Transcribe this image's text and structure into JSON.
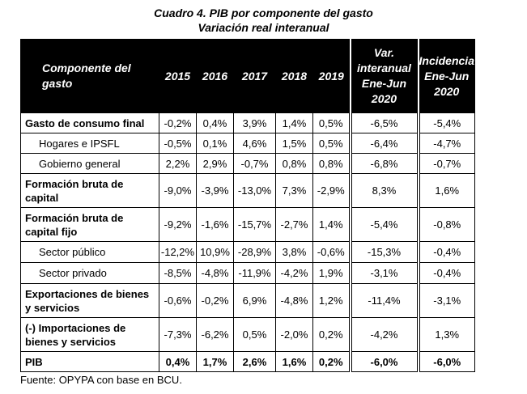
{
  "title": "Cuadro 4. PIB por componente del gasto",
  "subtitle": "Variación real interanual",
  "header": {
    "component": "Componente del gasto",
    "y2015": "2015",
    "y2016": "2016",
    "y2017": "2017",
    "y2018": "2018",
    "y2019": "2019",
    "var": "Var. interanual Ene-Jun 2020",
    "inc": "Incidencia Ene-Jun 2020"
  },
  "rows": [
    {
      "label": "Gasto de consumo final",
      "v2015": "-0,2%",
      "v2016": "0,4%",
      "v2017": "3,9%",
      "v2018": "1,4%",
      "v2019": "0,5%",
      "var": "-6,5%",
      "inc": "-5,4%"
    },
    {
      "label": "Hogares e IPSFL",
      "v2015": "-0,5%",
      "v2016": "0,1%",
      "v2017": "4,6%",
      "v2018": "1,5%",
      "v2019": "0,5%",
      "var": "-6,4%",
      "inc": "-4,7%"
    },
    {
      "label": "Gobierno general",
      "v2015": "2,2%",
      "v2016": "2,9%",
      "v2017": "-0,7%",
      "v2018": "0,8%",
      "v2019": "0,8%",
      "var": "-6,8%",
      "inc": "-0,7%"
    },
    {
      "label": "Formación bruta de capital",
      "v2015": "-9,0%",
      "v2016": "-3,9%",
      "v2017": "-13,0%",
      "v2018": "7,3%",
      "v2019": "-2,9%",
      "var": "8,3%",
      "inc": "1,6%"
    },
    {
      "label": "Formación bruta de capital fijo",
      "v2015": "-9,2%",
      "v2016": "-1,6%",
      "v2017": "-15,7%",
      "v2018": "-2,7%",
      "v2019": "1,4%",
      "var": "-5,4%",
      "inc": "-0,8%"
    },
    {
      "label": "Sector público",
      "v2015": "-12,2%",
      "v2016": "10,9%",
      "v2017": "-28,9%",
      "v2018": "3,8%",
      "v2019": "-0,6%",
      "var": "-15,3%",
      "inc": "-0,4%"
    },
    {
      "label": "Sector privado",
      "v2015": "-8,5%",
      "v2016": "-4,8%",
      "v2017": "-11,9%",
      "v2018": "-4,2%",
      "v2019": "1,9%",
      "var": "-3,1%",
      "inc": "-0,4%"
    },
    {
      "label": "Exportaciones de bienes y servicios",
      "v2015": "-0,6%",
      "v2016": "-0,2%",
      "v2017": "6,9%",
      "v2018": "-4,8%",
      "v2019": "1,2%",
      "var": "-11,4%",
      "inc": "-3,1%"
    },
    {
      "label": "(-) Importaciones de bienes y servicios",
      "v2015": "-7,3%",
      "v2016": "-6,2%",
      "v2017": "0,5%",
      "v2018": "-2,0%",
      "v2019": "0,2%",
      "var": "-4,2%",
      "inc": "1,3%"
    },
    {
      "label": "PIB",
      "v2015": "0,4%",
      "v2016": "1,7%",
      "v2017": "2,6%",
      "v2018": "1,6%",
      "v2019": "0,2%",
      "var": "-6,0%",
      "inc": "-6,0%"
    }
  ],
  "source": "Fuente: OPYPA con base en BCU."
}
